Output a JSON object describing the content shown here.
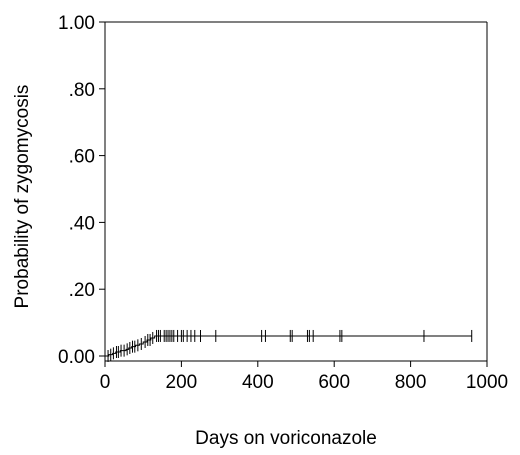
{
  "chart_data": {
    "type": "line",
    "title": "",
    "xlabel": "Days on voriconazole",
    "ylabel": "Probability of zygomycosis",
    "xlim": [
      0,
      1000
    ],
    "ylim": [
      0.0,
      1.0
    ],
    "x_ticks": [
      0,
      200,
      400,
      600,
      800,
      1000
    ],
    "x_tick_labels": [
      "0",
      "200",
      "400",
      "600",
      "800",
      "1000"
    ],
    "y_ticks": [
      0.0,
      0.2,
      0.4,
      0.6,
      0.8,
      1.0
    ],
    "y_tick_labels": [
      "0.00",
      ".20",
      ".40",
      ".60",
      ".80",
      "1.00"
    ],
    "grid": false,
    "legend": "none",
    "line_color": "#000000",
    "series": [
      {
        "step_x": [
          0,
          10,
          20,
          28,
          40,
          55,
          62,
          70,
          80,
          90,
          100,
          110,
          120,
          130,
          960
        ],
        "step_y": [
          0.0,
          0.004,
          0.008,
          0.012,
          0.016,
          0.02,
          0.024,
          0.028,
          0.032,
          0.036,
          0.042,
          0.048,
          0.054,
          0.06,
          0.06
        ],
        "censor_x": [
          8,
          15,
          22,
          30,
          35,
          42,
          50,
          58,
          65,
          72,
          78,
          86,
          95,
          105,
          112,
          118,
          125,
          135,
          140,
          145,
          155,
          160,
          165,
          170,
          175,
          180,
          190,
          200,
          205,
          215,
          225,
          235,
          250,
          290,
          410,
          420,
          485,
          490,
          530,
          535,
          545,
          615,
          620,
          835,
          960
        ]
      }
    ]
  }
}
